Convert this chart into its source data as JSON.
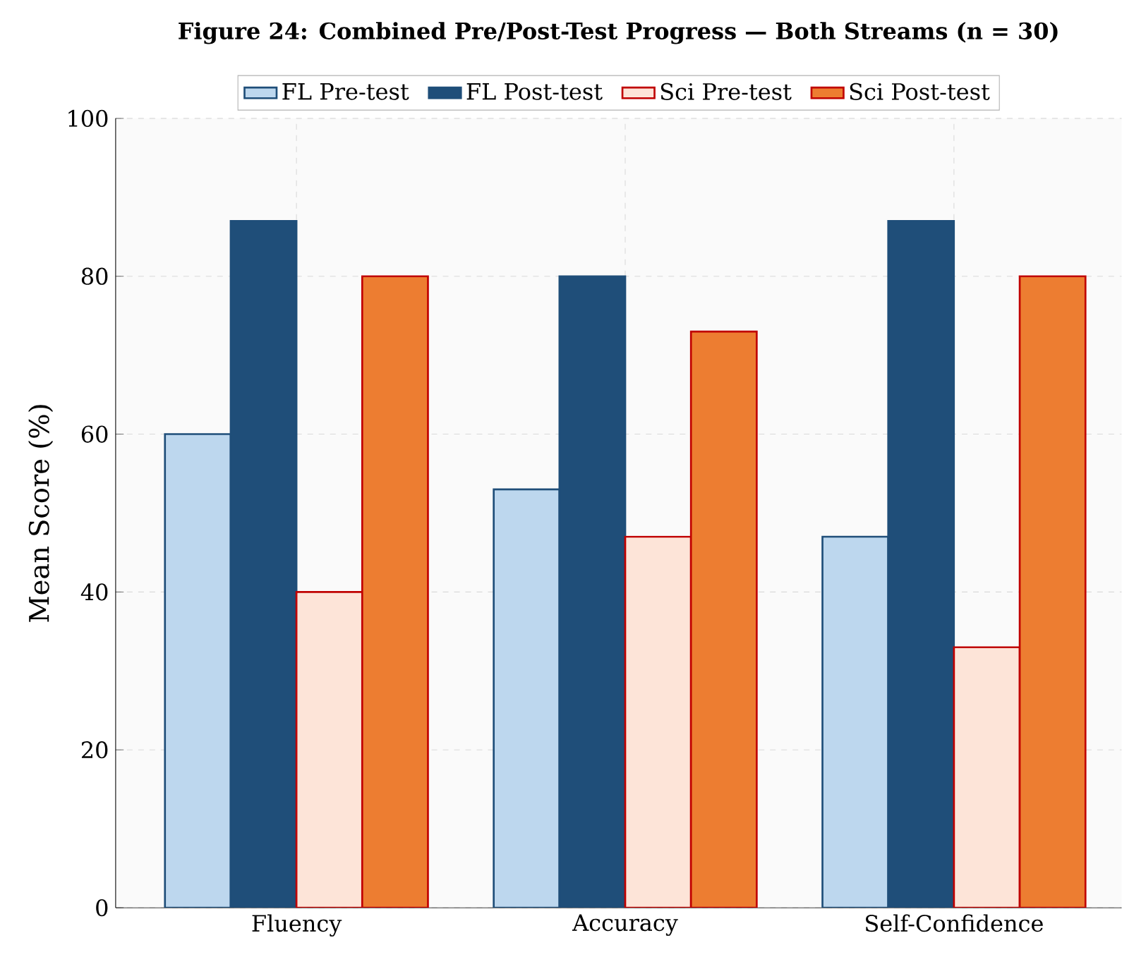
{
  "chart_data": {
    "type": "bar",
    "title": "Figure 24: Combined Pre/Post-Test Progress — Both Streams (n = 30)",
    "ylabel": "Mean Score (%)",
    "categories": [
      "Fluency",
      "Accuracy",
      "Self-Confidence"
    ],
    "series": [
      {
        "name": "FL Pre-test",
        "color": "#bdd7ee",
        "values": [
          60,
          53,
          47
        ]
      },
      {
        "name": "FL Post-test",
        "color": "#1f4e79",
        "values": [
          87,
          80,
          87
        ]
      },
      {
        "name": "Sci Pre-test",
        "color": "#fde4d8",
        "values": [
          40,
          47,
          33
        ]
      },
      {
        "name": "Sci Post-test",
        "color": "#ed7d31",
        "values": [
          80,
          73,
          80
        ]
      }
    ],
    "ylim": [
      0,
      100
    ],
    "yticks": [
      0,
      20,
      40,
      60,
      80,
      100
    ],
    "grid": true,
    "legend": "top"
  }
}
